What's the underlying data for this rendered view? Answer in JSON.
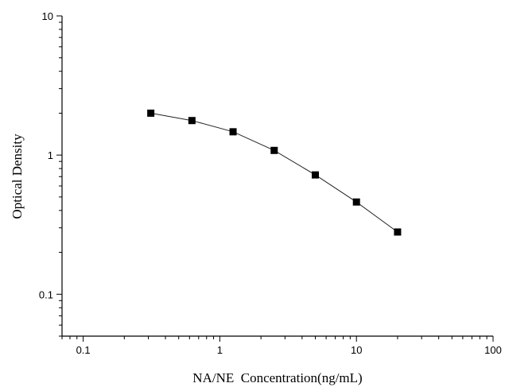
{
  "chart_data": {
    "type": "line",
    "title": "",
    "xlabel": "NA/NE  Concentration(ng/mL)",
    "ylabel": "Optical Density",
    "xscale": "log",
    "yscale": "log",
    "xlim": [
      0.07,
      100
    ],
    "ylim": [
      0.05,
      10
    ],
    "xticks": [
      0.1,
      1,
      10,
      100
    ],
    "xtick_labels": [
      "0.1",
      "1",
      "10",
      "100"
    ],
    "yticks": [
      0.1,
      1,
      10
    ],
    "ytick_labels": [
      "0.1",
      "1",
      "10"
    ],
    "grid": false,
    "legend": "none",
    "marker": "square",
    "series": [
      {
        "x": [
          0.3125,
          0.625,
          1.25,
          2.5,
          5,
          10,
          20
        ],
        "y": [
          2.0,
          1.77,
          1.47,
          1.08,
          0.72,
          0.46,
          0.28
        ]
      }
    ]
  }
}
